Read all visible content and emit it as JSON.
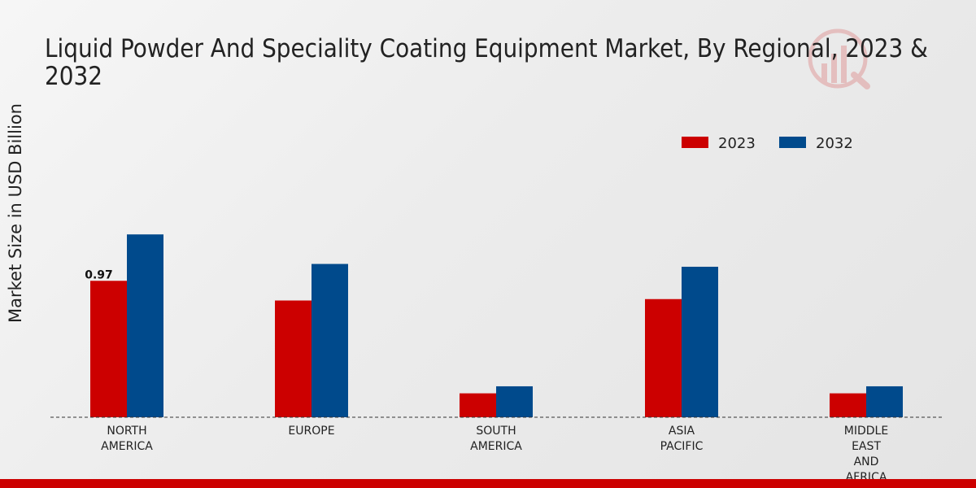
{
  "chart_data": {
    "type": "bar",
    "title_lines": [
      "Liquid Powder And Speciality Coating Equipment Market, By Regional, 2023 &",
      "2032"
    ],
    "ylabel": "Market Size in USD Billion",
    "xlabel": "",
    "categories": [
      [
        "NORTH",
        "AMERICA"
      ],
      [
        "EUROPE"
      ],
      [
        "SOUTH",
        "AMERICA"
      ],
      [
        "ASIA",
        "PACIFIC"
      ],
      [
        "MIDDLE",
        "EAST",
        "AND",
        "AFRICA"
      ]
    ],
    "series": [
      {
        "name": "2023",
        "color": "#cc0000",
        "values": [
          0.97,
          0.83,
          0.17,
          0.84,
          0.17
        ]
      },
      {
        "name": "2032",
        "color": "#004a8c",
        "values": [
          1.3,
          1.09,
          0.22,
          1.07,
          0.22
        ]
      }
    ],
    "data_labels": [
      {
        "series": 0,
        "index": 0,
        "text": "0.97"
      }
    ],
    "ylim": [
      0,
      2.4
    ],
    "grid": false,
    "legend_position": "top-right",
    "accent_bar_color": "#cc0000"
  }
}
